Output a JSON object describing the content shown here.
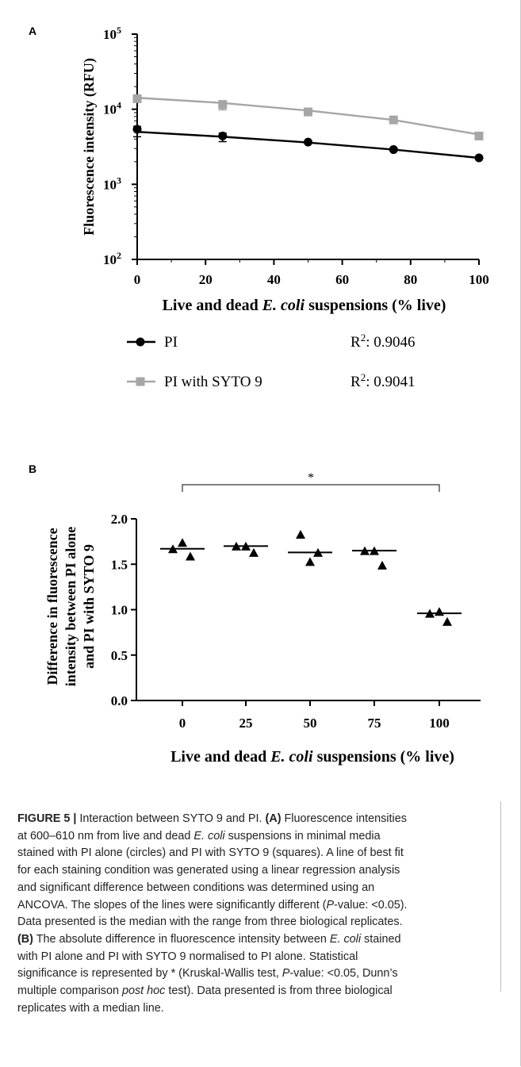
{
  "chart_data": [
    {
      "type": "line",
      "panel_label": "A",
      "ylabel": "Fluorescence intensity (RFU)",
      "xlabel_parts": [
        "Live and dead ",
        "E. coli",
        " suspensions (% live)"
      ],
      "yscale": "log",
      "ylim": [
        100,
        100000
      ],
      "xlim": [
        0,
        100
      ],
      "y_ticks": [
        {
          "value": 100,
          "base": "10",
          "exp": "2"
        },
        {
          "value": 1000,
          "base": "10",
          "exp": "3"
        },
        {
          "value": 10000,
          "base": "10",
          "exp": "4"
        },
        {
          "value": 100000,
          "base": "10",
          "exp": "5"
        }
      ],
      "x_ticks": [
        "0",
        "20",
        "40",
        "60",
        "80",
        "100"
      ],
      "x_tick_values": [
        0,
        20,
        40,
        60,
        80,
        100
      ],
      "series": [
        {
          "name": "PI",
          "marker": "circle",
          "color": "#000000",
          "x": [
            0,
            25,
            50,
            75,
            100
          ],
          "y": [
            5400,
            4400,
            3650,
            2900,
            2250
          ],
          "err_low": [
            4300,
            3700,
            3500,
            2800,
            2150
          ],
          "err_high": [
            5900,
            4800,
            3800,
            3000,
            2350
          ],
          "fit": [
            5000,
            4300,
            3600,
            2900,
            2250
          ],
          "r2_label": "R",
          "r2_sup": "2",
          "r2_value": ": 0.9046"
        },
        {
          "name": "PI with SYTO 9",
          "marker": "square",
          "color": "#a6a6a6",
          "x": [
            0,
            25,
            50,
            75,
            100
          ],
          "y": [
            13800,
            11500,
            9200,
            7200,
            4400
          ],
          "err_low": [
            12800,
            9800,
            8600,
            6600,
            4200
          ],
          "err_high": [
            14800,
            13000,
            9900,
            7800,
            4600
          ],
          "fit": [
            14200,
            12100,
            9600,
            7200,
            4600
          ],
          "r2_label": "R",
          "r2_sup": "2",
          "r2_value": ": 0.9041"
        }
      ]
    },
    {
      "type": "scatter",
      "panel_label": "B",
      "ylabel_lines": [
        "Difference in fluorescence",
        "intensity between PI alone",
        "and PI with SYTO 9"
      ],
      "xlabel_parts": [
        "Live and dead ",
        "E. coli",
        " suspensions (% live)"
      ],
      "ylim": [
        0,
        2.0
      ],
      "y_ticks": [
        "0.0",
        "0.5",
        "1.0",
        "1.5",
        "2.0"
      ],
      "y_tick_values": [
        0,
        0.5,
        1.0,
        1.5,
        2.0
      ],
      "categories": [
        "0",
        "25",
        "50",
        "75",
        "100"
      ],
      "points": [
        [
          1.67,
          1.74,
          1.59
        ],
        [
          1.7,
          1.7,
          1.63
        ],
        [
          1.83,
          1.53,
          1.63
        ],
        [
          1.65,
          1.65,
          1.49
        ],
        [
          0.96,
          0.98,
          0.87
        ]
      ],
      "medians": [
        1.67,
        1.7,
        1.63,
        1.65,
        0.96
      ],
      "significance": {
        "from": "0",
        "to": "100",
        "symbol": "*"
      }
    }
  ],
  "caption": {
    "lines": [
      [
        {
          "t": "FIGURE 5 |",
          "b": true
        },
        {
          "t": " Interaction between SYTO 9 and PI. "
        },
        {
          "t": "(A)",
          "b": true
        },
        {
          "t": " Fluorescence intensities"
        }
      ],
      [
        {
          "t": "at 600–610 nm from live and dead "
        },
        {
          "t": "E. coli",
          "i": true
        },
        {
          "t": " suspensions in minimal media"
        }
      ],
      [
        {
          "t": "stained with PI alone (circles) and PI with SYTO 9 (squares). A line of best fit"
        }
      ],
      [
        {
          "t": "for each staining condition was generated using a linear regression analysis"
        }
      ],
      [
        {
          "t": "and significant difference between conditions was determined using an"
        }
      ],
      [
        {
          "t": "ANCOVA. The slopes of the lines were significantly different ("
        },
        {
          "t": "P",
          "i": true
        },
        {
          "t": "-value: <0.05)."
        }
      ],
      [
        {
          "t": "Data presented is the median with the range from three biological replicates."
        }
      ],
      [
        {
          "t": "(B)",
          "b": true
        },
        {
          "t": " The absolute difference in fluorescence intensity between "
        },
        {
          "t": "E. coli",
          "i": true
        },
        {
          "t": " stained"
        }
      ],
      [
        {
          "t": "with PI alone and PI with SYTO 9 normalised to PI alone. Statistical"
        }
      ],
      [
        {
          "t": "significance is represented by * (Kruskal-Wallis test, "
        },
        {
          "t": "P",
          "i": true
        },
        {
          "t": "-value: <0.05, Dunn’s"
        }
      ],
      [
        {
          "t": "multiple comparison "
        },
        {
          "t": "post hoc",
          "i": true
        },
        {
          "t": " test). Data presented is from three biological"
        }
      ],
      [
        {
          "t": "replicates with a median line."
        }
      ]
    ]
  }
}
